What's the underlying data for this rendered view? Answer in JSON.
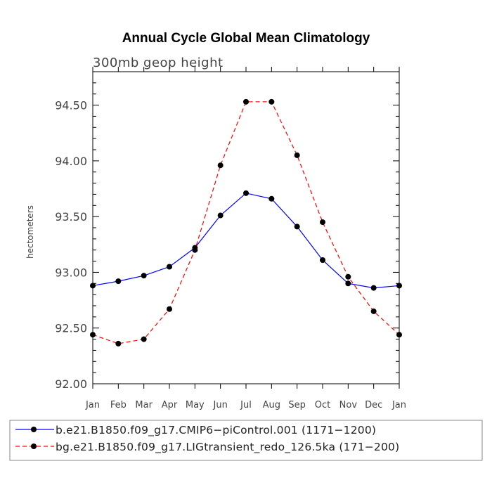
{
  "chart_data": {
    "type": "line",
    "title": "Annual Cycle Global Mean Climatology",
    "subtitle": "300mb geop height",
    "ylabel": "hectometers",
    "xlabel": "",
    "categories": [
      "Jan",
      "Feb",
      "Mar",
      "Apr",
      "May",
      "Jun",
      "Jul",
      "Aug",
      "Sep",
      "Oct",
      "Nov",
      "Dec",
      "Jan"
    ],
    "ylim": [
      92.0,
      94.8
    ],
    "yticks": [
      92.0,
      92.5,
      93.0,
      93.5,
      94.0,
      94.5
    ],
    "ytick_labels": [
      "92.00",
      "92.50",
      "93.00",
      "93.50",
      "94.00",
      "94.50"
    ],
    "series": [
      {
        "name": "b.e21.B1850.f09_g17.CMIP6−piControl.001 (1171−1200)",
        "color": "#0000ff",
        "dash": "solid",
        "values": [
          92.88,
          92.92,
          92.97,
          93.05,
          93.22,
          93.51,
          93.71,
          93.66,
          93.41,
          93.11,
          92.9,
          92.86,
          92.88
        ]
      },
      {
        "name": "bg.e21.B1850.f09_g17.LIGtransient_redo_126.5ka (171−200)",
        "color": "#ff0000",
        "dash": "dashed",
        "values": [
          92.44,
          92.36,
          92.4,
          92.67,
          93.2,
          93.96,
          94.53,
          94.53,
          94.05,
          93.45,
          92.96,
          92.65,
          92.44
        ]
      }
    ],
    "legend": "bottom"
  }
}
